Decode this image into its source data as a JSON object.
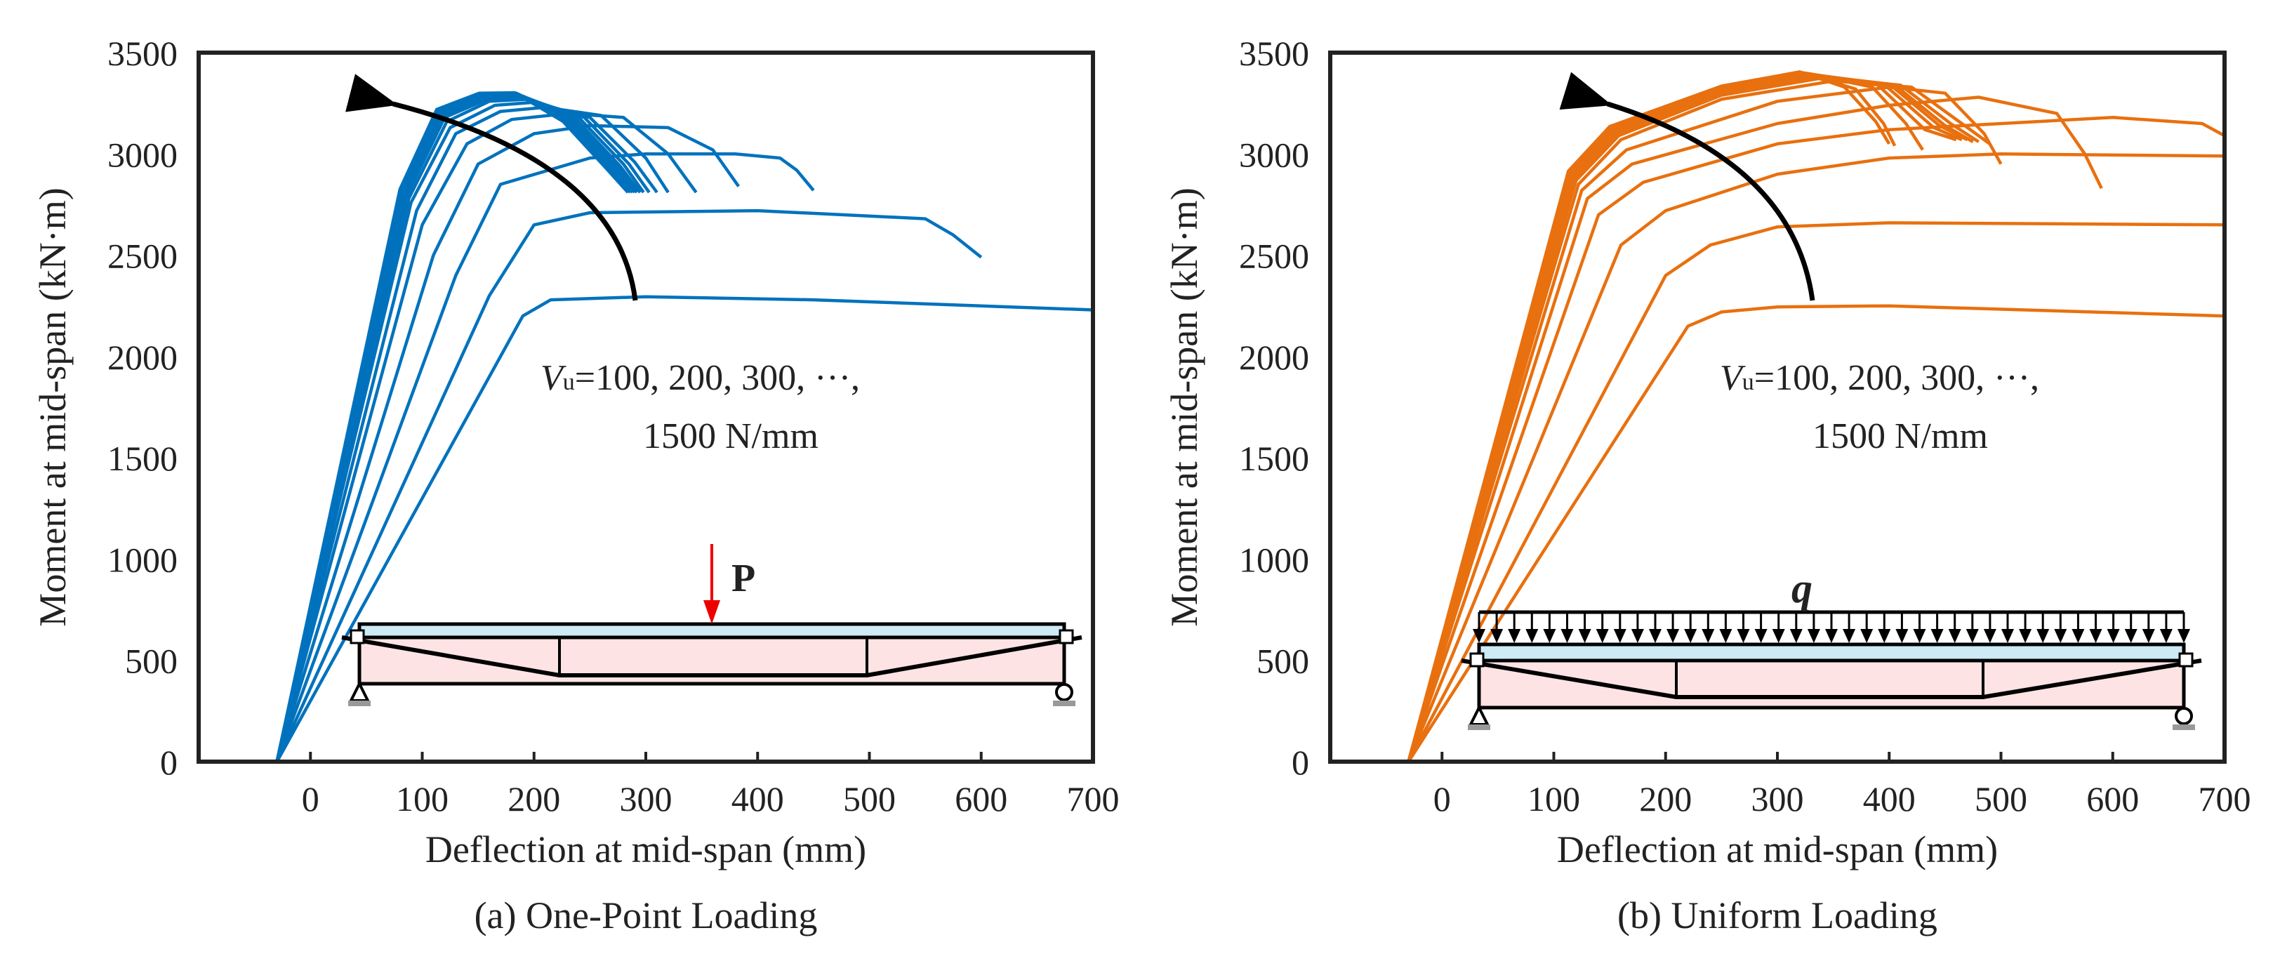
{
  "chart_data": [
    {
      "type": "line",
      "caption": "(a) One-Point Loading",
      "xlabel": "Deflection at mid-span (mm)",
      "ylabel": "Moment at mid-span (kN·m)",
      "xlim": [
        -100,
        700
      ],
      "ylim": [
        0,
        3500
      ],
      "xticks": [
        "0",
        "100",
        "200",
        "300",
        "400",
        "500",
        "600",
        "700"
      ],
      "yticks": [
        "0",
        "500",
        "1000",
        "1500",
        "2000",
        "2500",
        "3000",
        "3500"
      ],
      "color": "#0072BD",
      "annotation": {
        "var": "V",
        "sub": "u",
        "line1": "=100, 200, 300, ···,",
        "line2": "1500 N/mm"
      },
      "load_label": "P",
      "series": [
        {
          "name": "Vu=100",
          "x": [
            -30,
            190,
            215,
            300,
            450,
            700
          ],
          "y": [
            0,
            2200,
            2280,
            2295,
            2280,
            2230
          ]
        },
        {
          "name": "Vu=200",
          "x": [
            -30,
            160,
            200,
            250,
            400,
            550,
            575,
            600
          ],
          "y": [
            0,
            2300,
            2650,
            2710,
            2720,
            2680,
            2600,
            2490
          ]
        },
        {
          "name": "Vu=300",
          "x": [
            -30,
            130,
            170,
            250,
            300,
            380,
            420,
            435,
            450
          ],
          "y": [
            0,
            2400,
            2850,
            2980,
            3000,
            3000,
            2980,
            2920,
            2820
          ]
        },
        {
          "name": "Vu=400",
          "x": [
            -30,
            110,
            150,
            200,
            250,
            320,
            360,
            383
          ],
          "y": [
            0,
            2500,
            2950,
            3100,
            3140,
            3130,
            3020,
            2840
          ]
        },
        {
          "name": "Vu=500",
          "x": [
            -30,
            100,
            140,
            180,
            230,
            280,
            320,
            345
          ],
          "y": [
            0,
            2650,
            3050,
            3170,
            3200,
            3180,
            3000,
            2810
          ]
        },
        {
          "name": "Vu=600",
          "x": [
            -30,
            95,
            130,
            170,
            210,
            260,
            300,
            320
          ],
          "y": [
            0,
            2720,
            3100,
            3210,
            3230,
            3190,
            2980,
            2810
          ]
        },
        {
          "name": "Vu=700",
          "x": [
            -30,
            90,
            125,
            165,
            200,
            250,
            290,
            310
          ],
          "y": [
            0,
            2760,
            3130,
            3240,
            3255,
            3180,
            2960,
            2810
          ]
        },
        {
          "name": "Vu=800",
          "x": [
            -30,
            88,
            122,
            160,
            195,
            245,
            285,
            303
          ],
          "y": [
            0,
            2780,
            3160,
            3260,
            3270,
            3180,
            2950,
            2810
          ]
        },
        {
          "name": "Vu=900",
          "x": [
            -30,
            86,
            120,
            158,
            192,
            240,
            280,
            298
          ],
          "y": [
            0,
            2790,
            3180,
            3270,
            3280,
            3180,
            2950,
            2810
          ]
        },
        {
          "name": "Vu=1000",
          "x": [
            -30,
            85,
            118,
            156,
            190,
            237,
            277,
            295
          ],
          "y": [
            0,
            2800,
            3190,
            3280,
            3285,
            3175,
            2940,
            2810
          ]
        },
        {
          "name": "Vu=1100",
          "x": [
            -30,
            84,
            117,
            155,
            188,
            234,
            274,
            292
          ],
          "y": [
            0,
            2805,
            3200,
            3285,
            3290,
            3170,
            2940,
            2810
          ]
        },
        {
          "name": "Vu=1200",
          "x": [
            -30,
            83,
            116,
            154,
            186,
            232,
            272,
            290
          ],
          "y": [
            0,
            2810,
            3205,
            3290,
            3295,
            3170,
            2930,
            2810
          ]
        },
        {
          "name": "Vu=1300",
          "x": [
            -30,
            82,
            115,
            153,
            185,
            230,
            270,
            288
          ],
          "y": [
            0,
            2815,
            3210,
            3295,
            3298,
            3165,
            2930,
            2810
          ]
        },
        {
          "name": "Vu=1400",
          "x": [
            -30,
            81,
            114,
            152,
            184,
            228,
            268,
            286
          ],
          "y": [
            0,
            2820,
            3215,
            3298,
            3300,
            3165,
            2925,
            2810
          ]
        },
        {
          "name": "Vu=1500",
          "x": [
            -30,
            80,
            113,
            151,
            183,
            226,
            266,
            284
          ],
          "y": [
            0,
            2825,
            3220,
            3300,
            3302,
            3160,
            2920,
            2810
          ]
        }
      ]
    },
    {
      "type": "line",
      "caption": "(b) Uniform Loading",
      "xlabel": "Deflection at mid-span (mm)",
      "ylabel": "Moment at mid-span (kN·m)",
      "xlim": [
        -100,
        700
      ],
      "ylim": [
        0,
        3500
      ],
      "xticks": [
        "0",
        "100",
        "200",
        "300",
        "400",
        "500",
        "600",
        "700"
      ],
      "yticks": [
        "0",
        "500",
        "1000",
        "1500",
        "2000",
        "2500",
        "3000",
        "3500"
      ],
      "color": "#E8700F",
      "annotation": {
        "var": "V",
        "sub": "u",
        "line1": "=100, 200, 300, ···,",
        "line2": "1500 N/mm"
      },
      "load_label": "q",
      "series": [
        {
          "name": "Vu=100",
          "x": [
            -30,
            220,
            250,
            300,
            400,
            700
          ],
          "y": [
            0,
            2150,
            2220,
            2245,
            2250,
            2200
          ]
        },
        {
          "name": "Vu=200",
          "x": [
            -30,
            200,
            240,
            300,
            400,
            700
          ],
          "y": [
            0,
            2400,
            2550,
            2640,
            2660,
            2650
          ]
        },
        {
          "name": "Vu=300",
          "x": [
            -30,
            160,
            200,
            300,
            400,
            500,
            700
          ],
          "y": [
            0,
            2550,
            2720,
            2900,
            2980,
            3000,
            2990
          ]
        },
        {
          "name": "Vu=400",
          "x": [
            -30,
            140,
            180,
            300,
            400,
            600,
            680,
            700
          ],
          "y": [
            0,
            2700,
            2860,
            3050,
            3120,
            3180,
            3150,
            3090
          ]
        },
        {
          "name": "Vu=500",
          "x": [
            -30,
            130,
            170,
            300,
            400,
            480,
            550,
            575,
            590
          ],
          "y": [
            0,
            2780,
            2950,
            3150,
            3240,
            3280,
            3200,
            3000,
            2830
          ]
        },
        {
          "name": "Vu=600",
          "x": [
            -30,
            125,
            165,
            300,
            400,
            450,
            485,
            500
          ],
          "y": [
            0,
            2820,
            3020,
            3260,
            3330,
            3300,
            3100,
            2950
          ]
        },
        {
          "name": "Vu=700",
          "x": [
            -30,
            122,
            160,
            250,
            350,
            420,
            465,
            490
          ],
          "y": [
            0,
            2850,
            3070,
            3270,
            3360,
            3330,
            3150,
            3050
          ]
        },
        {
          "name": "Vu=800",
          "x": [
            -30,
            120,
            158,
            250,
            340,
            410,
            455,
            480
          ],
          "y": [
            0,
            2870,
            3090,
            3290,
            3375,
            3340,
            3150,
            3060
          ]
        },
        {
          "name": "Vu=900",
          "x": [
            -30,
            119,
            156,
            250,
            335,
            405,
            450,
            475
          ],
          "y": [
            0,
            2880,
            3100,
            3300,
            3385,
            3340,
            3140,
            3060
          ]
        },
        {
          "name": "Vu=1000",
          "x": [
            -30,
            118,
            155,
            250,
            330,
            400,
            445,
            470
          ],
          "y": [
            0,
            2890,
            3110,
            3310,
            3390,
            3345,
            3140,
            3070
          ]
        },
        {
          "name": "Vu=1100",
          "x": [
            -30,
            117,
            154,
            250,
            328,
            395,
            440,
            465
          ],
          "y": [
            0,
            2895,
            3115,
            3315,
            3395,
            3345,
            3130,
            3070
          ]
        },
        {
          "name": "Vu=1200",
          "x": [
            -30,
            116,
            153,
            250,
            326,
            390,
            432,
            460
          ],
          "y": [
            0,
            2900,
            3120,
            3320,
            3398,
            3340,
            3120,
            3070
          ]
        },
        {
          "name": "Vu=1300",
          "x": [
            -30,
            115,
            152,
            250,
            324,
            385,
            415,
            430
          ],
          "y": [
            0,
            2905,
            3125,
            3325,
            3400,
            3330,
            3150,
            3020
          ]
        },
        {
          "name": "Vu=1400",
          "x": [
            -30,
            114,
            151,
            250,
            322,
            370,
            395,
            405
          ],
          "y": [
            0,
            2910,
            3130,
            3330,
            3402,
            3320,
            3150,
            3040
          ]
        },
        {
          "name": "Vu=1500",
          "x": [
            -30,
            113,
            150,
            250,
            320,
            360,
            388,
            400
          ],
          "y": [
            0,
            2915,
            3135,
            3335,
            3405,
            3330,
            3160,
            3050
          ]
        }
      ]
    }
  ]
}
